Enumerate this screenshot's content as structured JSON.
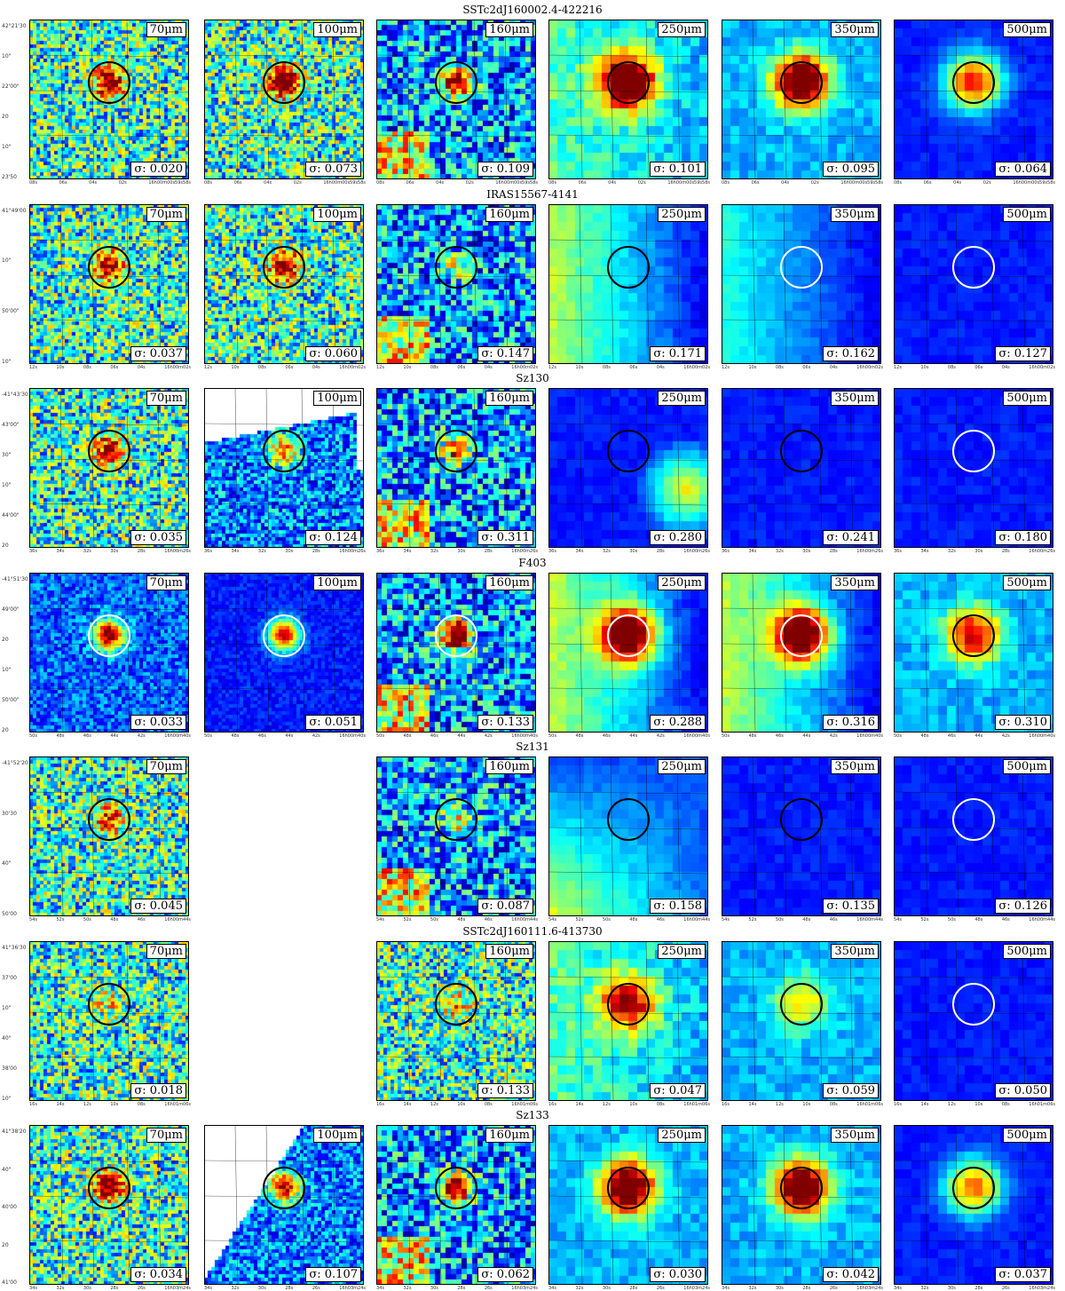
{
  "rows": [
    {
      "name": "SSTc2dJ160002.4-422216",
      "ylabels": [
        "42°21'30",
        "10\"",
        "22'00\"",
        "20",
        "10\"",
        "23'50"
      ],
      "xlabels": [
        "08s",
        "06s",
        "04s",
        "02s",
        "16h00m00s59s58s"
      ],
      "panels": [
        {
          "wl": "70μm",
          "sigma": "σ: 0.020",
          "cmap": "noisy",
          "ring": "black",
          "src": 0.8
        },
        {
          "wl": "100μm",
          "sigma": "σ: 0.073",
          "cmap": "noisy",
          "ring": "black",
          "src": 0.9
        },
        {
          "wl": "160μm",
          "sigma": "σ: 0.109",
          "cmap": "blue",
          "ring": "black",
          "src": 0.9
        },
        {
          "wl": "250μm",
          "sigma": "σ: 0.101",
          "cmap": "smooth",
          "ring": "black",
          "src": 1.0
        },
        {
          "wl": "350μm",
          "sigma": "σ: 0.095",
          "cmap": "smooth-blue",
          "ring": "black",
          "src": 1.0
        },
        {
          "wl": "500μm",
          "sigma": "σ: 0.064",
          "cmap": "deep",
          "ring": "black",
          "src": 0.8
        }
      ]
    },
    {
      "name": "IRAS15567-4141",
      "ylabels": [
        "41°49'00",
        "10\"",
        "50'00\"",
        "10\""
      ],
      "xlabels": [
        "12s",
        "10s",
        "08s",
        "06s",
        "04s",
        "16h00m02s"
      ],
      "panels": [
        {
          "wl": "70μm",
          "sigma": "σ: 0.037",
          "cmap": "noisy",
          "ring": "black",
          "src": 0.7
        },
        {
          "wl": "100μm",
          "sigma": "σ: 0.060",
          "cmap": "noisy",
          "ring": "black",
          "src": 0.7
        },
        {
          "wl": "160μm",
          "sigma": "σ: 0.147",
          "cmap": "blue",
          "ring": "black",
          "src": 0.3
        },
        {
          "wl": "250μm",
          "sigma": "σ: 0.171",
          "cmap": "gradient",
          "ring": "black",
          "src": 0.0
        },
        {
          "wl": "350μm",
          "sigma": "σ: 0.162",
          "cmap": "gradient-deep",
          "ring": "white",
          "src": 0.0
        },
        {
          "wl": "500μm",
          "sigma": "σ: 0.127",
          "cmap": "deep",
          "ring": "white",
          "src": 0.0
        }
      ]
    },
    {
      "name": "Sz130",
      "ylabels": [
        "-41°43'30",
        "43'00\"",
        "30\"",
        "10\"",
        "44'00\"",
        "20"
      ],
      "xlabels": [
        "36s",
        "34s",
        "32s",
        "30s",
        "28s",
        "16h00m26s"
      ],
      "panels": [
        {
          "wl": "70μm",
          "sigma": "σ: 0.035",
          "cmap": "noisy",
          "ring": "black",
          "src": 0.6
        },
        {
          "wl": "100μm",
          "sigma": "σ: 0.124",
          "cmap": "edge",
          "ring": "black",
          "src": 0.6
        },
        {
          "wl": "160μm",
          "sigma": "σ: 0.311",
          "cmap": "blue",
          "ring": "black",
          "src": 0.6
        },
        {
          "wl": "250μm",
          "sigma": "σ: 0.280",
          "cmap": "gradient-rev",
          "ring": "black",
          "src": 0.0
        },
        {
          "wl": "350μm",
          "sigma": "σ: 0.241",
          "cmap": "deep",
          "ring": "black",
          "src": 0.0
        },
        {
          "wl": "500μm",
          "sigma": "σ: 0.180",
          "cmap": "deep",
          "ring": "white",
          "src": 0.0
        }
      ]
    },
    {
      "name": "F403",
      "ylabels": [
        "-41°51'30",
        "49'00\"",
        "20",
        "10\"",
        "50'00\"",
        "20"
      ],
      "xlabels": [
        "50s",
        "48s",
        "46s",
        "44s",
        "42s",
        "16h00m40s"
      ],
      "panels": [
        {
          "wl": "70μm",
          "sigma": "σ: 0.033",
          "cmap": "blue-noise",
          "ring": "white",
          "src": 0.9
        },
        {
          "wl": "100μm",
          "sigma": "σ: 0.051",
          "cmap": "deep-noise",
          "ring": "white",
          "src": 0.9
        },
        {
          "wl": "160μm",
          "sigma": "σ: 0.133",
          "cmap": "blue",
          "ring": "white",
          "src": 1.0
        },
        {
          "wl": "250μm",
          "sigma": "σ: 0.288",
          "cmap": "gradient",
          "ring": "white",
          "src": 1.0
        },
        {
          "wl": "350μm",
          "sigma": "σ: 0.316",
          "cmap": "gradient",
          "ring": "white",
          "src": 1.0
        },
        {
          "wl": "500μm",
          "sigma": "σ: 0.310",
          "cmap": "smooth-blue",
          "ring": "black",
          "src": 0.7
        }
      ]
    },
    {
      "name": "Sz131",
      "ylabels": [
        "-41°52'20",
        "30'30",
        "40\"",
        "50'00"
      ],
      "xlabels": [
        "54s",
        "52s",
        "50s",
        "48s",
        "46s",
        "16h00m44s"
      ],
      "panels": [
        {
          "wl": "70μm",
          "sigma": "σ: 0.045",
          "cmap": "noisy",
          "ring": "black",
          "src": 0.5
        },
        null,
        {
          "wl": "160μm",
          "sigma": "σ: 0.087",
          "cmap": "blue",
          "ring": "black",
          "src": 0.4
        },
        {
          "wl": "250μm",
          "sigma": "σ: 0.158",
          "cmap": "bottom-warm",
          "ring": "black",
          "src": 0.0
        },
        {
          "wl": "350μm",
          "sigma": "σ: 0.135",
          "cmap": "deep",
          "ring": "black",
          "src": 0.0
        },
        {
          "wl": "500μm",
          "sigma": "σ: 0.126",
          "cmap": "deep",
          "ring": "white",
          "src": 0.0
        }
      ]
    },
    {
      "name": "SSTc2dJ160111.6-413730",
      "ylabels": [
        "41°36'30",
        "37'00",
        "10\"",
        "40\"",
        "38'00",
        "10\""
      ],
      "xlabels": [
        "16s",
        "14s",
        "12s",
        "10s",
        "08s",
        "16h01m06s"
      ],
      "panels": [
        {
          "wl": "70μm",
          "sigma": "σ: 0.018",
          "cmap": "noisy",
          "ring": "black",
          "src": 0.2
        },
        null,
        {
          "wl": "160μm",
          "sigma": "σ: 0.133",
          "cmap": "noisy",
          "ring": "black",
          "src": 0.3
        },
        {
          "wl": "250μm",
          "sigma": "σ: 0.047",
          "cmap": "smooth",
          "ring": "black",
          "src": 0.7
        },
        {
          "wl": "350μm",
          "sigma": "σ: 0.059",
          "cmap": "smooth-blue",
          "ring": "black",
          "src": 0.4
        },
        {
          "wl": "500μm",
          "sigma": "σ: 0.050",
          "cmap": "deep",
          "ring": "white",
          "src": 0.0
        }
      ]
    },
    {
      "name": "Sz133",
      "ylabels": [
        "41°38'20",
        "40\"",
        "40'00",
        "20",
        "41'00"
      ],
      "xlabels": [
        "34s",
        "32s",
        "30s",
        "28s",
        "26s",
        "16h03m24s"
      ],
      "panels": [
        {
          "wl": "70μm",
          "sigma": "σ: 0.034",
          "cmap": "noisy",
          "ring": "black",
          "src": 0.8
        },
        {
          "wl": "100μm",
          "sigma": "σ: 0.107",
          "cmap": "diag",
          "ring": "black",
          "src": 0.8
        },
        {
          "wl": "160μm",
          "sigma": "σ: 0.062",
          "cmap": "blue",
          "ring": "black",
          "src": 0.9
        },
        {
          "wl": "250μm",
          "sigma": "σ: 0.030",
          "cmap": "smooth-blue",
          "ring": "black",
          "src": 1.0
        },
        {
          "wl": "350μm",
          "sigma": "σ: 0.042",
          "cmap": "smooth-blue",
          "ring": "black",
          "src": 1.0
        },
        {
          "wl": "500μm",
          "sigma": "σ: 0.037",
          "cmap": "deep",
          "ring": "black",
          "src": 0.7
        }
      ]
    }
  ]
}
